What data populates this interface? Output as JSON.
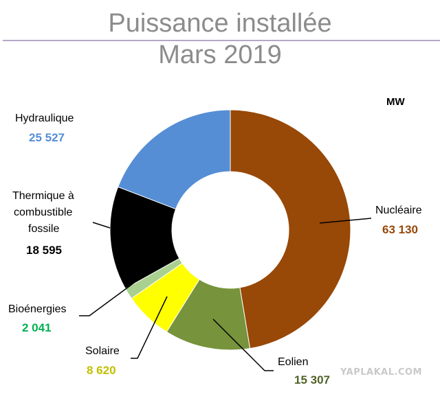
{
  "chart_data": {
    "type": "pie",
    "title": "Puissance installée",
    "subtitle": "Mars 2019",
    "unit": "MW",
    "categories": [
      "Nucléaire",
      "Eolien",
      "Solaire",
      "Bioénergies",
      "Thermique à combustible fossile",
      "Hydraulique"
    ],
    "values": [
      63130,
      15307,
      8620,
      2041,
      18595,
      25527
    ],
    "value_labels": [
      "63 130",
      "15 307",
      "8 620",
      "2 041",
      "18 595",
      "25 527"
    ],
    "colors": [
      "#984807",
      "#77933c",
      "#ffff00",
      "#a9d08e",
      "#000000",
      "#558ed5"
    ],
    "label_colors": [
      "#984807",
      "#4f6228",
      "#c0c000",
      "#00b050",
      "#000000",
      "#558ed5"
    ]
  },
  "labels": {
    "hydraulique": "Hydraulique",
    "thermique_1": "Thermique à",
    "thermique_2": "combustible",
    "thermique_3": "fossile",
    "bioenergies": "Bioénergies",
    "solaire": "Solaire",
    "eolien": "Eolien",
    "nucleaire": "Nucléaire"
  },
  "watermark": "YAPLAKAL.COM"
}
